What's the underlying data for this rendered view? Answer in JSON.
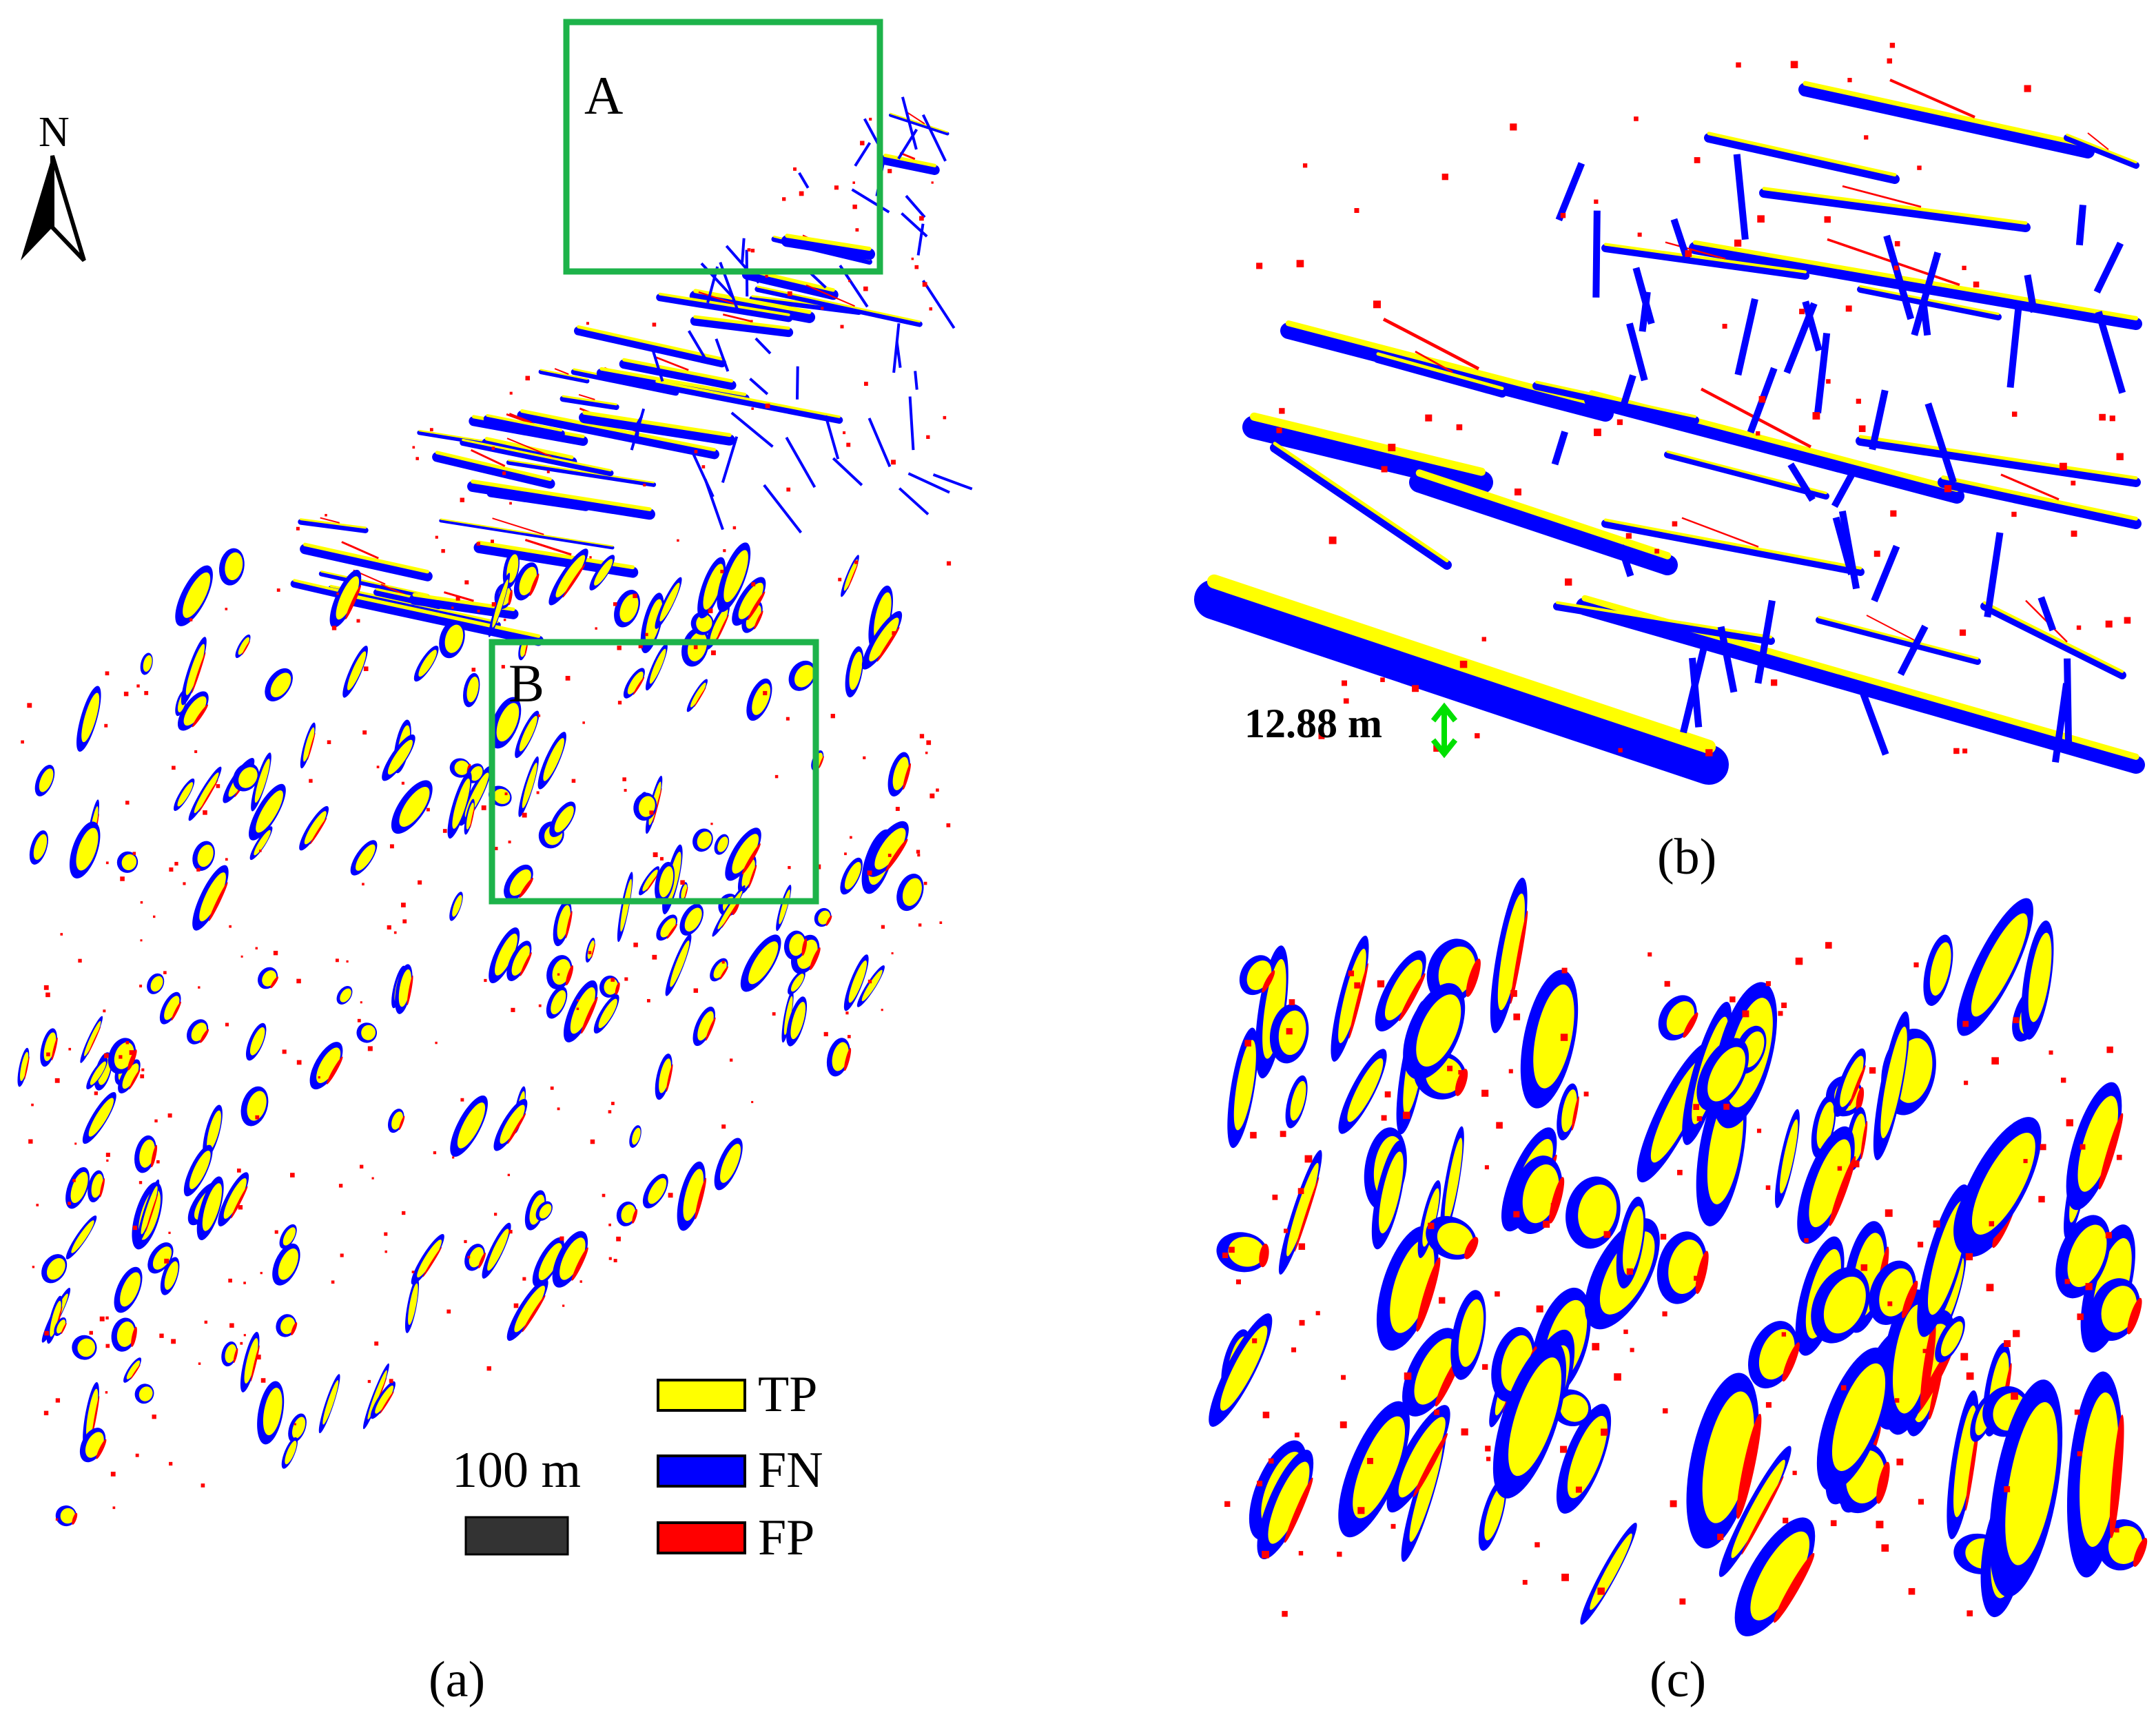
{
  "figure": {
    "panels": [
      {
        "id": "a",
        "caption": "(a)"
      },
      {
        "id": "b",
        "caption": "(b)"
      },
      {
        "id": "c",
        "caption": "(c)"
      }
    ],
    "north_arrow": {
      "label": "N"
    },
    "inset_boxes": [
      {
        "label": "A",
        "zooms_to": "b"
      },
      {
        "label": "B",
        "zooms_to": "c"
      }
    ],
    "scale_bar": {
      "label": "100 m"
    },
    "legend": [
      {
        "label": "TP",
        "color": "#ffff00"
      },
      {
        "label": "FN",
        "color": "#0000ff"
      },
      {
        "label": "FP",
        "color": "#ff0000"
      }
    ],
    "measurement": {
      "label": "12.88 m",
      "arrow_color": "#00e000"
    },
    "box_color": "#1db34a"
  }
}
